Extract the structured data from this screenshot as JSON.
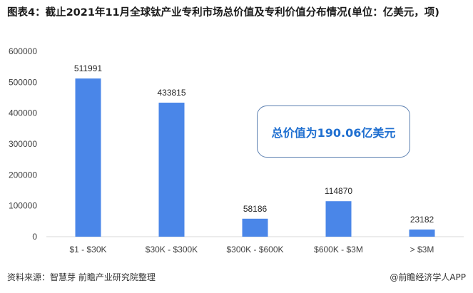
{
  "title": "图表4：截止2021年11月全球钛产业专利市场总价值及专利价值分布情况(单位：亿美元，项)",
  "callout": "总价值为190.06亿美元",
  "source": "资料来源：智慧芽 前瞻产业研究院整理",
  "brand": "@前瞻经济学人APP",
  "colors": {
    "bar": "#4a86e8",
    "callout_border": "#5b7fb0",
    "callout_text": "#1f6fd0"
  },
  "chart_data": {
    "type": "bar",
    "title": "图表4：截止2021年11月全球钛产业专利市场总价值及专利价值分布情况(单位：亿美元，项)",
    "categories": [
      "$1 - $30K",
      "$30K - $300K",
      "$300K - $600K",
      "$600K - $3M",
      "> $3M"
    ],
    "values": [
      511991,
      433815,
      58186,
      114870,
      23182
    ],
    "data_labels": [
      "511991",
      "433815",
      "58186",
      "114870",
      "23182"
    ],
    "yticks": [
      "0",
      "100000",
      "200000",
      "300000",
      "400000",
      "500000",
      "600000"
    ],
    "ylim": [
      0,
      600000
    ],
    "grid": false,
    "xlabel": "",
    "ylabel": ""
  }
}
